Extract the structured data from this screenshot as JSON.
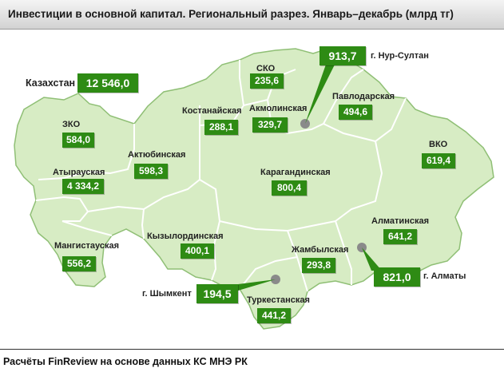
{
  "title": "Инвестиции  в основной капитал. Региональный разрез. Январь–декабрь (млрд  тг)",
  "footer": "Расчёты FinReview на основе данных КС МНЭ РК",
  "colors": {
    "land": "#d7ecc4",
    "border": "#ffffff",
    "box": "#2e8b14",
    "city": "#888888"
  },
  "kazakhstan": {
    "label": "Казахстан",
    "value": "12 546,0"
  },
  "regions": [
    {
      "id": "sko",
      "name": "СКО",
      "value": "235,6"
    },
    {
      "id": "akmola",
      "name": "Акмолинская",
      "value": "329,7"
    },
    {
      "id": "kostanay",
      "name": "Костанайская",
      "value": "288,1"
    },
    {
      "id": "pavlodar",
      "name": "Павлодарская",
      "value": "494,6"
    },
    {
      "id": "zko",
      "name": "ЗКО",
      "value": "584,0"
    },
    {
      "id": "vko",
      "name": "ВКО",
      "value": "619,4"
    },
    {
      "id": "aktobe",
      "name": "Актюбинская",
      "value": "598,3"
    },
    {
      "id": "atyrau",
      "name": "Атырауская",
      "value": "4 334,2"
    },
    {
      "id": "karaganda",
      "name": "Карагандинская",
      "value": "800,4"
    },
    {
      "id": "almaty-region",
      "name": "Алматинская",
      "value": "641,2"
    },
    {
      "id": "mangystau",
      "name": "Мангистауская",
      "value": "556,2"
    },
    {
      "id": "kyzylorda",
      "name": "Кызылординская",
      "value": "400,1"
    },
    {
      "id": "zhambyl",
      "name": "Жамбылская",
      "value": "293,8"
    },
    {
      "id": "turkestan",
      "name": "Туркестанская",
      "value": "441,2"
    }
  ],
  "cities": [
    {
      "id": "nur-sultan",
      "name": "г. Нур-Султан",
      "value": "913,7"
    },
    {
      "id": "almaty",
      "name": "г. Алматы",
      "value": "821,0"
    },
    {
      "id": "shymkent",
      "name": "г. Шымкент",
      "value": "194,5"
    }
  ]
}
